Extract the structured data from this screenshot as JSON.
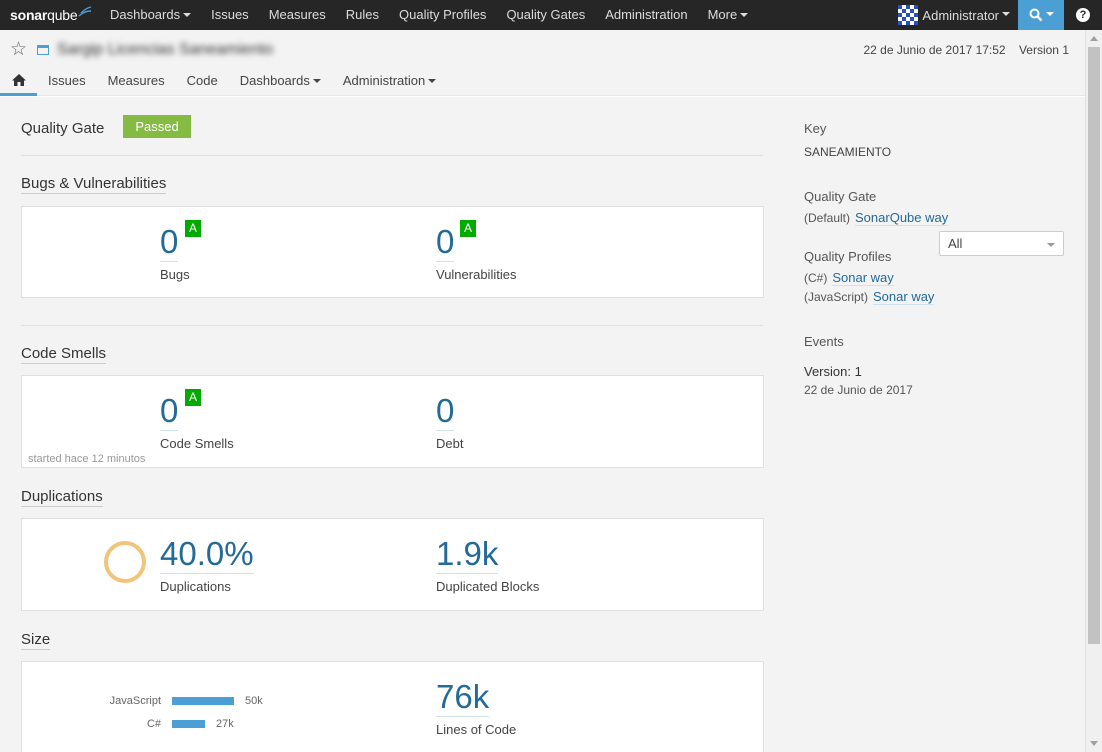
{
  "topnav": {
    "logo_prefix": "sonar",
    "logo_suffix": "qube",
    "items": [
      {
        "name": "nav-dashboards",
        "label": "Dashboards",
        "caret": true
      },
      {
        "name": "nav-issues",
        "label": "Issues",
        "caret": false
      },
      {
        "name": "nav-measures",
        "label": "Measures",
        "caret": false
      },
      {
        "name": "nav-rules",
        "label": "Rules",
        "caret": false
      },
      {
        "name": "nav-quality-profiles",
        "label": "Quality Profiles",
        "caret": false
      },
      {
        "name": "nav-quality-gates",
        "label": "Quality Gates",
        "caret": false
      },
      {
        "name": "nav-administration",
        "label": "Administration",
        "caret": false
      },
      {
        "name": "nav-more",
        "label": "More",
        "caret": true
      }
    ],
    "user": "Administrator",
    "help_glyph": "?"
  },
  "context": {
    "project_name": "Sargip Licencias Saneamiento",
    "date": "22 de Junio de 2017 17:52",
    "version": "Version 1",
    "tabs": [
      {
        "name": "tab-issues",
        "label": "Issues",
        "caret": false
      },
      {
        "name": "tab-measures",
        "label": "Measures",
        "caret": false
      },
      {
        "name": "tab-code",
        "label": "Code",
        "caret": false
      },
      {
        "name": "tab-dashboards",
        "label": "Dashboards",
        "caret": true
      },
      {
        "name": "tab-administration",
        "label": "Administration",
        "caret": true
      }
    ]
  },
  "quality_gate": {
    "title": "Quality Gate",
    "status": "Passed",
    "status_color": "#85bb43"
  },
  "bugs_vulns": {
    "title": "Bugs & Vulnerabilities",
    "bugs": {
      "value": "0",
      "label": "Bugs",
      "rating": "A"
    },
    "vulnerabilities": {
      "value": "0",
      "label": "Vulnerabilities",
      "rating": "A"
    }
  },
  "code_smells": {
    "title": "Code Smells",
    "smells": {
      "value": "0",
      "label": "Code Smells",
      "rating": "A"
    },
    "debt": {
      "value": "0",
      "label": "Debt"
    },
    "started": "started hace 12 minutos"
  },
  "duplications": {
    "title": "Duplications",
    "percent": {
      "value": "40.0%",
      "label": "Duplications"
    },
    "blocks": {
      "value": "1.9k",
      "label": "Duplicated Blocks"
    }
  },
  "size": {
    "title": "Size",
    "languages": [
      {
        "name": "JavaScript",
        "count": "50k",
        "fraction": 1.0
      },
      {
        "name": "C#",
        "count": "27k",
        "fraction": 0.54
      }
    ],
    "lines": {
      "value": "76k",
      "label": "Lines of Code"
    }
  },
  "sidebar": {
    "key_label": "Key",
    "key_value": "SANEAMIENTO",
    "qg_label": "Quality Gate",
    "qg_prefix": "(Default)",
    "qg_link": "SonarQube way",
    "qp_label": "Quality Profiles",
    "profiles": [
      {
        "lang": "(C#)",
        "name": "Sonar way"
      },
      {
        "lang": "(JavaScript)",
        "name": "Sonar way"
      }
    ],
    "events_label": "Events",
    "events_filter": "All",
    "event_title": "Version: 1",
    "event_date": "22 de Junio de 2017"
  }
}
